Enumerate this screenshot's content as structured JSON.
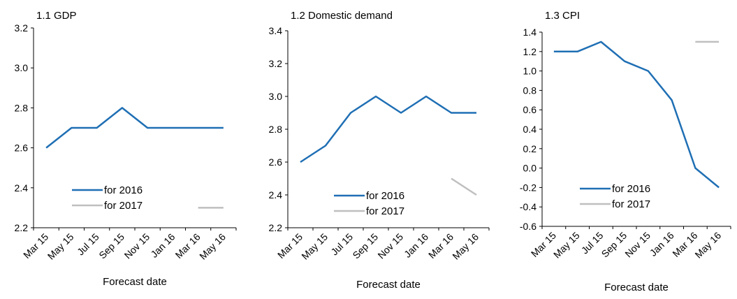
{
  "chart_data": [
    {
      "type": "line",
      "title": "1.1 GDP",
      "xlabel": "Forecast date",
      "ylabel": "",
      "ylim": [
        2.2,
        3.2
      ],
      "yticks": [
        "2.2",
        "2.4",
        "2.6",
        "2.8",
        "3.0",
        "3.2"
      ],
      "x": [
        "Mar 15",
        "May 15",
        "Jul 15",
        "Sep 15",
        "Nov 15",
        "Jan 16",
        "Mar 16",
        "May 16"
      ],
      "legend_position": "lower-left",
      "series": [
        {
          "name": "for 2016",
          "color": "#1f6fb4",
          "values": [
            2.6,
            2.7,
            2.7,
            2.8,
            2.7,
            2.7,
            2.7,
            2.7
          ]
        },
        {
          "name": "for 2017",
          "color": "#bfbfbf",
          "values": [
            null,
            null,
            null,
            null,
            null,
            null,
            2.3,
            2.3
          ]
        }
      ]
    },
    {
      "type": "line",
      "title": "1.2 Domestic demand",
      "xlabel": "Forecast date",
      "ylabel": "",
      "ylim": [
        2.2,
        3.4
      ],
      "yticks": [
        "2.2",
        "2.4",
        "2.6",
        "2.8",
        "3.0",
        "3.2",
        "3.4"
      ],
      "x": [
        "Mar 15",
        "May 15",
        "Jul 15",
        "Sep 15",
        "Nov 15",
        "Jan 16",
        "Mar 16",
        "May 16"
      ],
      "legend_position": "lower-left",
      "series": [
        {
          "name": "for 2016",
          "color": "#1f6fb4",
          "values": [
            2.6,
            2.7,
            2.9,
            3.0,
            2.9,
            3.0,
            2.9,
            2.9
          ]
        },
        {
          "name": "for 2017",
          "color": "#bfbfbf",
          "values": [
            null,
            null,
            null,
            null,
            null,
            null,
            2.5,
            2.4
          ]
        }
      ]
    },
    {
      "type": "line",
      "title": "1.3 CPI",
      "xlabel": "Forecast date",
      "ylabel": "",
      "ylim": [
        -0.6,
        1.4
      ],
      "yticks": [
        "-0.6",
        "-0.4",
        "-0.2",
        "0.0",
        "0.2",
        "0.4",
        "0.6",
        "0.8",
        "1.0",
        "1.2",
        "1.4"
      ],
      "x": [
        "Mar 15",
        "May 15",
        "Jul 15",
        "Sep 15",
        "Nov 15",
        "Jan 16",
        "Mar 16",
        "May 16"
      ],
      "legend_position": "lower-left",
      "series": [
        {
          "name": "for 2016",
          "color": "#1f6fb4",
          "values": [
            1.2,
            1.2,
            1.3,
            1.1,
            1.0,
            0.7,
            0.0,
            -0.2
          ]
        },
        {
          "name": "for 2017",
          "color": "#bfbfbf",
          "values": [
            null,
            null,
            null,
            null,
            null,
            null,
            1.3,
            1.3
          ]
        }
      ]
    }
  ]
}
